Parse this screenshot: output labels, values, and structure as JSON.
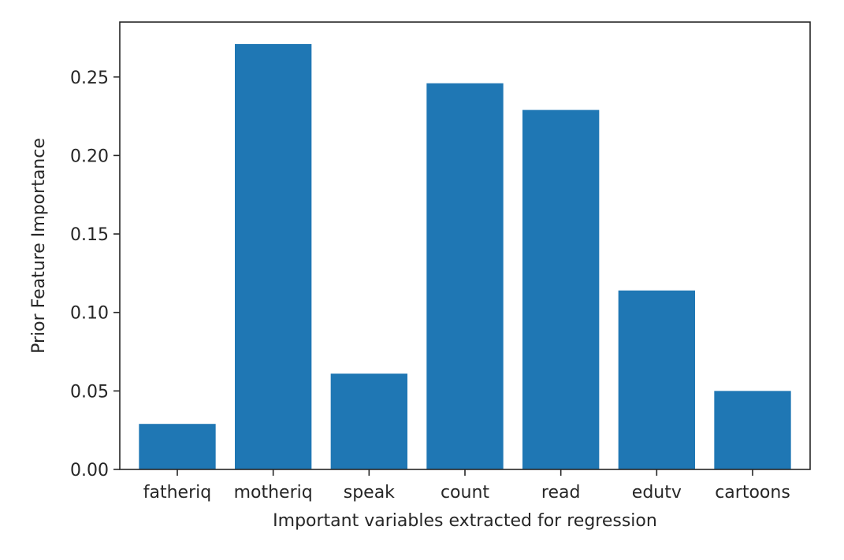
{
  "chart_data": {
    "type": "bar",
    "categories": [
      "fatheriq",
      "motheriq",
      "speak",
      "count",
      "read",
      "edutv",
      "cartoons"
    ],
    "values": [
      0.029,
      0.271,
      0.061,
      0.246,
      0.229,
      0.114,
      0.05
    ],
    "xlabel": "Important variables extracted for regression",
    "ylabel": "Prior Feature Importance",
    "ylim": [
      0,
      0.285
    ],
    "yticks": [
      0.0,
      0.05,
      0.1,
      0.15,
      0.2,
      0.25
    ],
    "ytick_labels": [
      "0.00",
      "0.05",
      "0.10",
      "0.15",
      "0.20",
      "0.25"
    ],
    "grid": false,
    "bar_color": "#1f77b4"
  }
}
